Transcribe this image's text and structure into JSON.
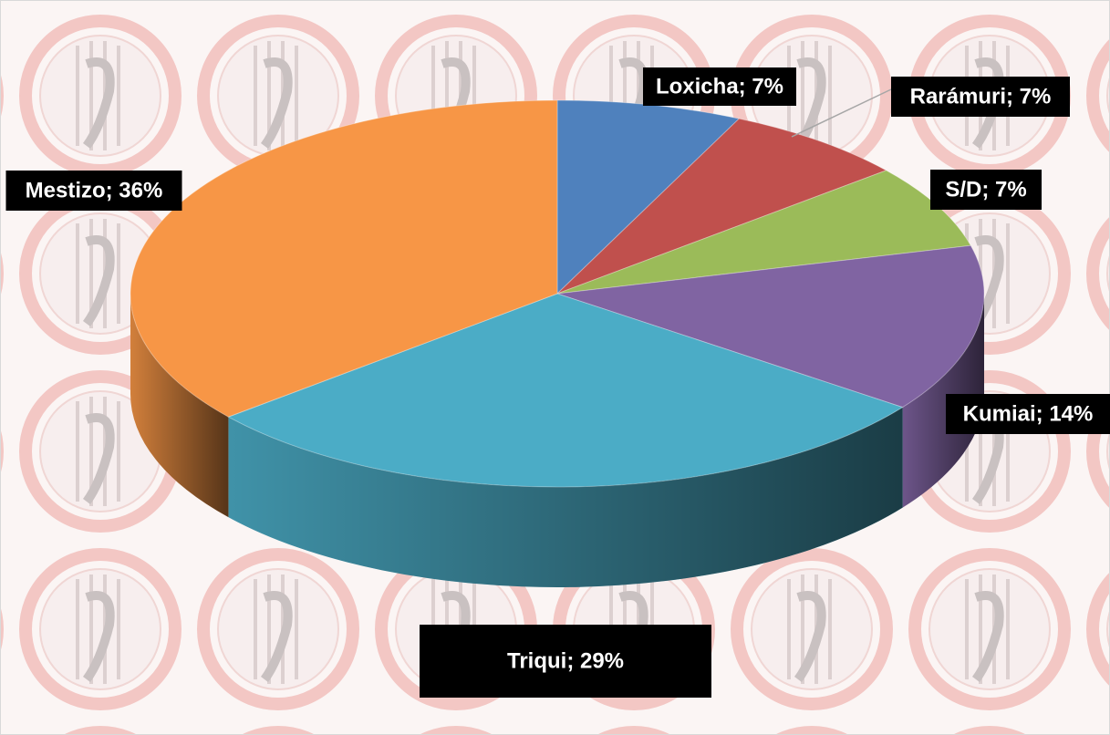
{
  "chart_data": {
    "type": "pie",
    "values": [
      7,
      7,
      7,
      14,
      29,
      36
    ],
    "value_labels": [
      "Loxicha; 7%",
      "Rarámuri; 7%",
      "S/D; 7%",
      "Kumiai; 14%",
      "Triqui; 29%",
      "Mestizo; 36%"
    ],
    "colors": [
      "#4f81bd",
      "#c0504d",
      "#9bbb59",
      "#8064a2",
      "#4bacc6",
      "#f79646"
    ]
  }
}
